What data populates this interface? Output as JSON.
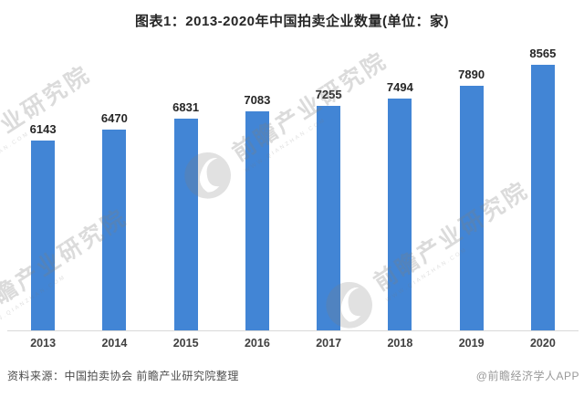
{
  "title": "图表1：2013-2020年中国拍卖企业数量(单位：家)",
  "chart_data": {
    "type": "bar",
    "categories": [
      "2013",
      "2014",
      "2015",
      "2016",
      "2017",
      "2018",
      "2019",
      "2020"
    ],
    "values": [
      6143,
      6470,
      6831,
      7083,
      7255,
      7494,
      7890,
      8565
    ],
    "title": "图表1：2013-2020年中国拍卖企业数量(单位：家)",
    "xlabel": "",
    "ylabel": "",
    "unit": "家",
    "ylim": [
      0,
      9000
    ],
    "grid": false,
    "bar_color": "#4285d5",
    "value_labels_shown": true,
    "y_axis_visible": false
  },
  "watermark": {
    "cn": "前瞻产业研究院",
    "en": "WWW.QIANZHAN.COM",
    "logo": "qianzhan-logo"
  },
  "footer": {
    "source": "资料来源：中国拍卖协会 前瞻产业研究院整理",
    "credit": "@前瞻经济学人APP"
  },
  "colors": {
    "bar": "#4285d5",
    "title_text": "#262626",
    "axis_line": "#d9d9d9",
    "year_label": "#404040",
    "source_text": "#4d4d4d",
    "credit_text": "#999999"
  }
}
